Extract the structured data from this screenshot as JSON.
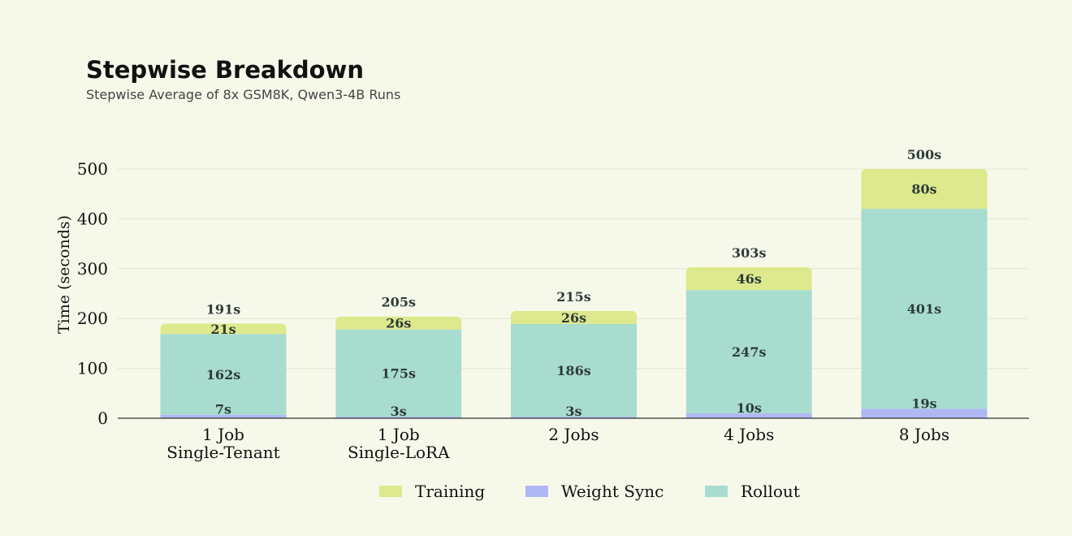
{
  "chart_data": {
    "type": "bar",
    "stacked": true,
    "title": "Stepwise Breakdown",
    "subtitle": "Stepwise Average of 8x GSM8K, Qwen3-4B Runs",
    "xlabel": "",
    "ylabel": "Time (seconds)",
    "ylim": [
      0,
      500
    ],
    "yticks": [
      0,
      100,
      200,
      300,
      400,
      500
    ],
    "grid": true,
    "legend_position": "bottom",
    "categories": [
      [
        "1 Job",
        "Single-Tenant"
      ],
      [
        "1 Job",
        "Single-LoRA"
      ],
      [
        "2 Jobs"
      ],
      [
        "4 Jobs"
      ],
      [
        "8 Jobs"
      ]
    ],
    "series": [
      {
        "name": "Weight Sync",
        "color": "#b0b8f4",
        "values": [
          7,
          3,
          3,
          10,
          19
        ],
        "labels": [
          "7s",
          "3s",
          "3s",
          "10s",
          "19s"
        ]
      },
      {
        "name": "Rollout",
        "color": "#a8dccf",
        "values": [
          162,
          175,
          186,
          247,
          401
        ],
        "labels": [
          "162s",
          "175s",
          "186s",
          "247s",
          "401s"
        ]
      },
      {
        "name": "Training",
        "color": "#dde98c",
        "values": [
          21,
          26,
          26,
          46,
          80
        ],
        "labels": [
          "21s",
          "26s",
          "26s",
          "46s",
          "80s"
        ]
      }
    ],
    "totals": [
      191,
      205,
      215,
      303,
      500
    ],
    "total_labels": [
      "191s",
      "205s",
      "215s",
      "303s",
      "500s"
    ],
    "legend_order": [
      "Training",
      "Weight Sync",
      "Rollout"
    ]
  }
}
